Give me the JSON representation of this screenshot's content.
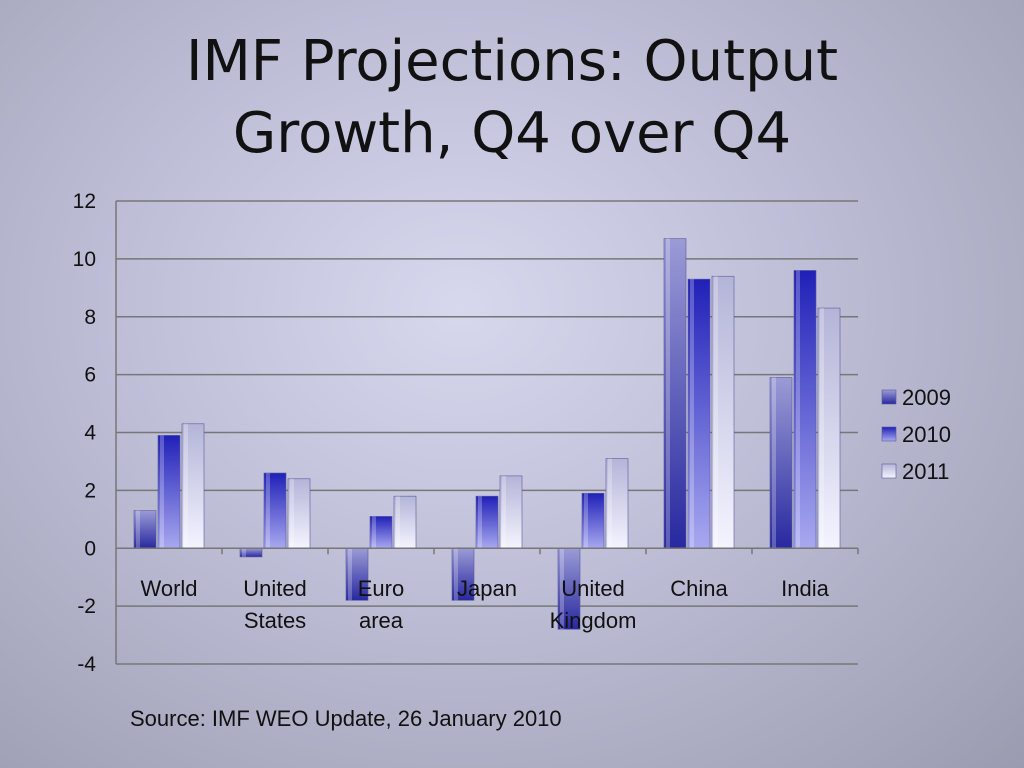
{
  "slide": {
    "title_line1": "IMF Projections: Output",
    "title_line2": "Growth, Q4 over Q4",
    "source": "Source: IMF WEO Update, 26 January 2010"
  },
  "chart_data": {
    "type": "bar",
    "title": "IMF Projections: Output Growth, Q4 over Q4",
    "xlabel": "",
    "ylabel": "",
    "categories": [
      [
        "World"
      ],
      [
        "United",
        "States"
      ],
      [
        "Euro",
        "area"
      ],
      [
        "Japan"
      ],
      [
        "United",
        "Kingdom"
      ],
      [
        "China"
      ],
      [
        "India"
      ]
    ],
    "series": [
      {
        "name": "2009",
        "values": [
          1.3,
          -0.3,
          -1.8,
          -1.8,
          -2.8,
          10.7,
          5.9
        ],
        "color_top": "#9b9bd6",
        "color_bottom": "#2828a0"
      },
      {
        "name": "2010",
        "values": [
          3.9,
          2.6,
          1.1,
          1.8,
          1.9,
          9.3,
          9.6
        ],
        "color_top": "#2020b8",
        "color_bottom": "#a8a8f0"
      },
      {
        "name": "2011",
        "values": [
          4.3,
          2.4,
          1.8,
          2.5,
          3.1,
          9.4,
          8.3
        ],
        "color_top": "#b4b4d8",
        "color_bottom": "#f4f4ff"
      }
    ],
    "ylim": [
      -4,
      12
    ],
    "yticks": [
      -4,
      -2,
      0,
      2,
      4,
      6,
      8,
      10,
      12
    ],
    "grid": true,
    "legend_position": "right"
  }
}
